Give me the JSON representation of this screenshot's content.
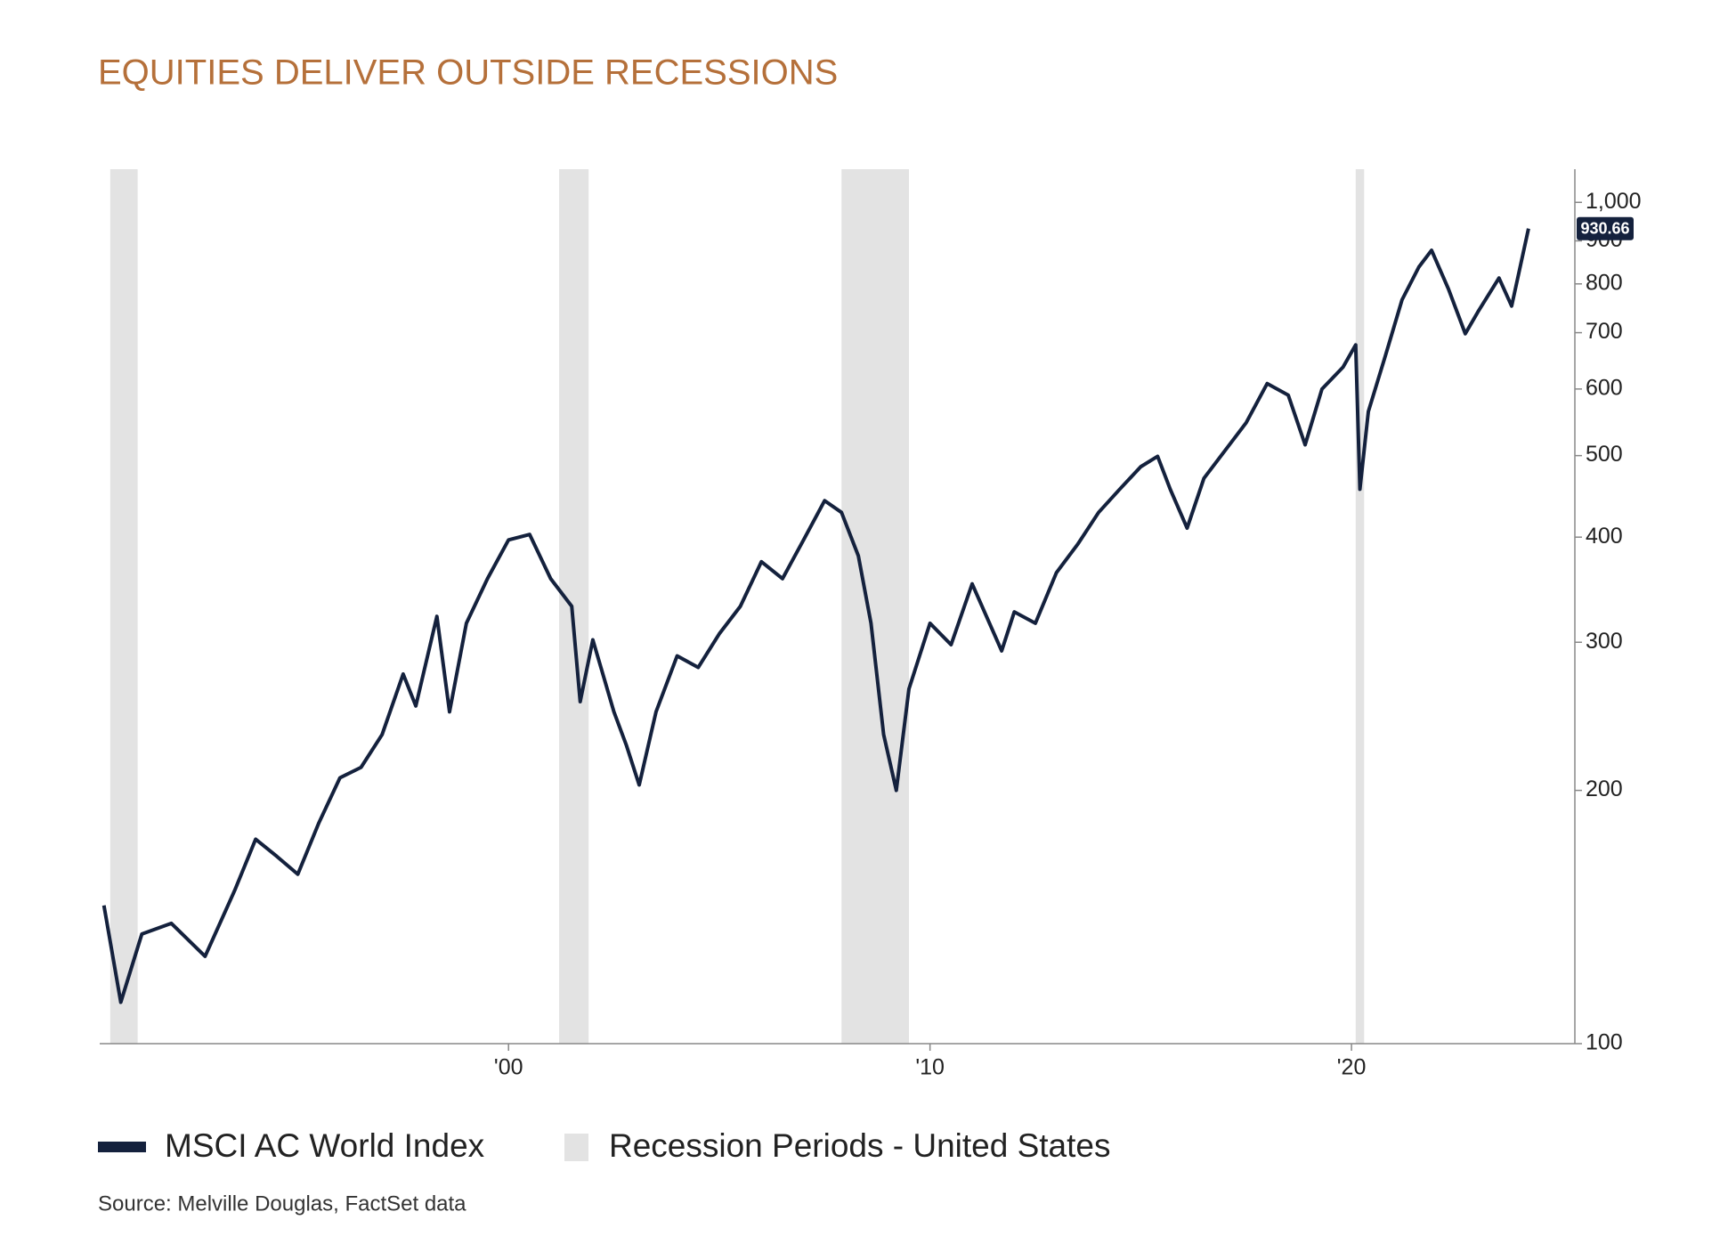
{
  "chart_data": {
    "type": "line",
    "title": "EQUITIES DELIVER OUTSIDE RECESSIONS",
    "source": "Source: Melville Douglas, FactSet data",
    "log_scale_y": true,
    "x": [
      1990.4,
      1990.8,
      1991.3,
      1992,
      1992.8,
      1993.5,
      1994,
      1994.5,
      1995,
      1995.5,
      1996,
      1996.5,
      1997,
      1997.5,
      1997.8,
      1998.3,
      1998.6,
      1999,
      1999.5,
      2000,
      2000.5,
      2001,
      2001.5,
      2001.7,
      2002,
      2002.5,
      2002.8,
      2003.1,
      2003.5,
      2004,
      2004.5,
      2005,
      2005.5,
      2006,
      2006.5,
      2007,
      2007.5,
      2007.9,
      2008.3,
      2008.6,
      2008.9,
      2009.2,
      2009.5,
      2010,
      2010.5,
      2011,
      2011.7,
      2012,
      2012.5,
      2013,
      2013.5,
      2014,
      2014.5,
      2015,
      2015.4,
      2015.7,
      2016.1,
      2016.5,
      2017,
      2017.5,
      2018,
      2018.5,
      2018.9,
      2019.3,
      2019.8,
      2020.1,
      2020.2,
      2020.4,
      2020.8,
      2021.2,
      2021.6,
      2021.9,
      2022.3,
      2022.7,
      2023,
      2023.5,
      2023.8,
      2024.2
    ],
    "series": [
      {
        "name": "MSCI AC World Index",
        "color": "#14213d",
        "values": [
          146,
          112,
          135,
          139,
          127,
          152,
          175,
          167,
          159,
          183,
          207,
          213,
          233,
          275,
          252,
          322,
          248,
          316,
          357,
          397,
          403,
          357,
          331,
          255,
          302,
          248,
          226,
          203,
          248,
          289,
          280,
          307,
          331,
          374,
          357,
          397,
          442,
          428,
          380,
          316,
          233,
          200,
          264,
          316,
          298,
          352,
          293,
          326,
          316,
          363,
          392,
          428,
          456,
          485,
          499,
          456,
          410,
          470,
          507,
          547,
          609,
          590,
          515,
          600,
          637,
          677,
          456,
          564,
          656,
          766,
          838,
          877,
          789,
          698,
          741,
          813,
          753,
          930.66
        ],
        "value_labels": [
          null,
          null,
          null,
          null,
          null,
          null,
          null,
          null,
          null,
          null,
          null,
          null,
          null,
          null,
          null,
          null,
          null,
          null,
          null,
          null,
          null,
          null,
          null,
          null,
          null,
          null,
          null,
          null,
          null,
          null,
          null,
          null,
          null,
          null,
          null,
          null,
          null,
          null,
          null,
          null,
          null,
          null,
          null,
          null,
          null,
          null,
          null,
          null,
          null,
          null,
          null,
          null,
          null,
          null,
          null,
          null,
          null,
          null,
          null,
          null,
          null,
          null,
          null,
          null,
          null,
          null,
          null,
          null,
          null,
          null,
          null,
          null,
          null,
          null,
          null,
          null,
          null,
          "930.66"
        ]
      }
    ],
    "shaded_periods": {
      "name": "Recession Periods - United States",
      "color": "#e3e3e3",
      "ranges": [
        [
          1990.55,
          1991.2
        ],
        [
          2001.2,
          2001.9
        ],
        [
          2007.9,
          2009.5
        ],
        [
          2020.1,
          2020.3
        ]
      ]
    },
    "xlim": [
      1990.3,
      2025.3
    ],
    "xticks": [
      {
        "value": 2000,
        "label": "'00"
      },
      {
        "value": 2010,
        "label": "'10"
      },
      {
        "value": 2020,
        "label": "'20"
      }
    ],
    "ylim": [
      100,
      1095
    ],
    "yticks": [
      100,
      200,
      300,
      400,
      500,
      600,
      700,
      800,
      900,
      {
        "value": 1000,
        "label": "1,000"
      }
    ]
  }
}
